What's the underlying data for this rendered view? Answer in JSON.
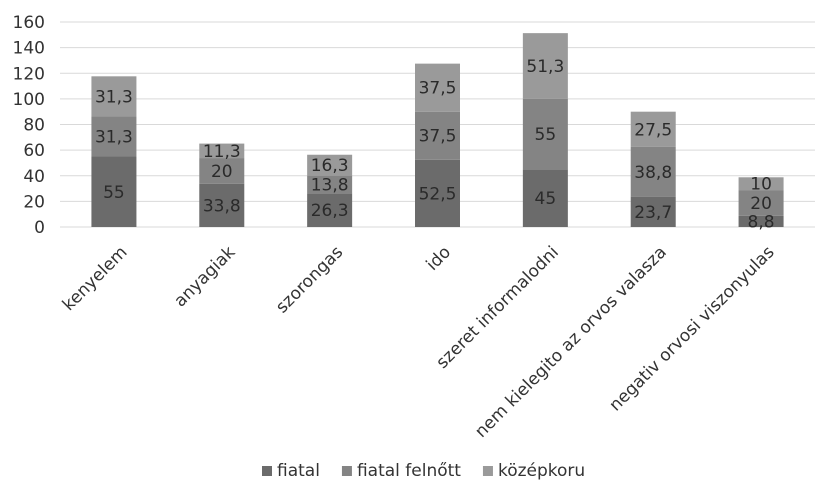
{
  "chart_data": {
    "type": "bar",
    "stacked": true,
    "categories": [
      "kenyelem",
      "anyagiak",
      "szorongas",
      "ido",
      "szeret informalodni",
      "nem kielegito az orvos valasza",
      "negativ orvosi viszonyulas"
    ],
    "series": [
      {
        "name": "fiatal",
        "values": [
          55,
          33.8,
          26.3,
          52.5,
          45,
          23.7,
          8.8
        ],
        "labels": [
          "55",
          "33,8",
          "26,3",
          "52,5",
          "45",
          "23,7",
          "8,8"
        ]
      },
      {
        "name": "fiatal felnőtt",
        "values": [
          31.3,
          20,
          13.8,
          37.5,
          55,
          38.8,
          20
        ],
        "labels": [
          "31,3",
          "20",
          "13,8",
          "37,5",
          "55",
          "38,8",
          "20"
        ]
      },
      {
        "name": "középkoru",
        "values": [
          31.3,
          11.3,
          16.3,
          37.5,
          51.3,
          27.5,
          10
        ],
        "labels": [
          "31,3",
          "11,3",
          "16,3",
          "37,5",
          "51,3",
          "27,5",
          "10"
        ]
      }
    ],
    "y_ticks": [
      "0",
      "20",
      "40",
      "60",
      "80",
      "100",
      "120",
      "140",
      "160"
    ],
    "ylim": [
      0,
      160
    ],
    "grid": true,
    "legend": "bottom",
    "colors": [
      "#6b6b6b",
      "#848484",
      "#9a9a9a"
    ],
    "gridline_color": "#d9d9d9"
  }
}
